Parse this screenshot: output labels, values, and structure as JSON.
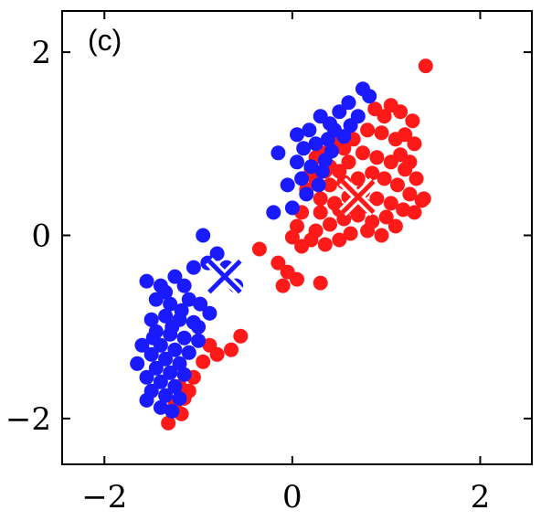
{
  "chart_data": {
    "type": "scatter",
    "panel_label": "(c)",
    "xlim": [
      -2.45,
      2.55
    ],
    "ylim": [
      -2.5,
      2.45
    ],
    "x_ticks": [
      {
        "value": -2,
        "label": "−2"
      },
      {
        "value": 0,
        "label": "0"
      },
      {
        "value": 2,
        "label": "2"
      }
    ],
    "y_ticks": [
      {
        "value": 2,
        "label": "2"
      },
      {
        "value": 0,
        "label": "0"
      },
      {
        "value": -2,
        "label": "−2"
      }
    ],
    "grid": false,
    "series": [
      {
        "color": "#ff1a1a",
        "points": [
          [
            1.42,
            1.85
          ],
          [
            1.28,
            1.25
          ],
          [
            1.15,
            1.35
          ],
          [
            1.05,
            1.42
          ],
          [
            0.98,
            1.3
          ],
          [
            0.88,
            1.38
          ],
          [
            1.2,
            1.1
          ],
          [
            1.3,
            1.0
          ],
          [
            1.1,
            1.05
          ],
          [
            0.95,
            1.12
          ],
          [
            0.8,
            1.15
          ],
          [
            0.65,
            1.05
          ],
          [
            0.55,
            0.95
          ],
          [
            0.45,
            1.02
          ],
          [
            0.35,
            0.9
          ],
          [
            0.25,
            0.85
          ],
          [
            0.4,
            0.75
          ],
          [
            0.6,
            0.8
          ],
          [
            0.75,
            0.9
          ],
          [
            0.9,
            0.85
          ],
          [
            1.05,
            0.8
          ],
          [
            1.2,
            0.72
          ],
          [
            1.32,
            0.62
          ],
          [
            1.25,
            0.45
          ],
          [
            1.12,
            0.55
          ],
          [
            0.98,
            0.62
          ],
          [
            0.85,
            0.68
          ],
          [
            0.7,
            0.62
          ],
          [
            0.55,
            0.58
          ],
          [
            0.4,
            0.55
          ],
          [
            0.25,
            0.6
          ],
          [
            0.15,
            0.5
          ],
          [
            0.3,
            0.4
          ],
          [
            0.45,
            0.35
          ],
          [
            0.6,
            0.42
          ],
          [
            0.75,
            0.48
          ],
          [
            0.9,
            0.4
          ],
          [
            1.05,
            0.35
          ],
          [
            1.18,
            0.28
          ],
          [
            1.3,
            0.25
          ],
          [
            1.38,
            0.38
          ],
          [
            1.0,
            0.2
          ],
          [
            0.85,
            0.15
          ],
          [
            0.7,
            0.22
          ],
          [
            0.55,
            0.18
          ],
          [
            0.4,
            0.12
          ],
          [
            0.25,
            0.05
          ],
          [
            0.1,
            0.25
          ],
          [
            0.05,
            0.1
          ],
          [
            0.2,
            -0.05
          ],
          [
            0.35,
            -0.1
          ],
          [
            0.5,
            -0.05
          ],
          [
            0.62,
            0.02
          ],
          [
            0.8,
            0.05
          ],
          [
            0.95,
            0.0
          ],
          [
            1.1,
            0.1
          ],
          [
            0.3,
            0.25
          ],
          [
            0.5,
            0.28
          ],
          [
            0.65,
            0.3
          ],
          [
            0.78,
            0.32
          ],
          [
            1.15,
            0.88
          ],
          [
            1.25,
            0.8
          ],
          [
            0.5,
            0.7
          ],
          [
            0.35,
            0.7
          ],
          [
            0.2,
            0.7
          ],
          [
            0.0,
            -0.02
          ],
          [
            0.1,
            -0.12
          ],
          [
            -0.15,
            -0.3
          ],
          [
            -0.05,
            -0.4
          ],
          [
            -0.1,
            -0.55
          ],
          [
            0.05,
            -0.48
          ],
          [
            -0.35,
            -0.15
          ],
          [
            0.3,
            -0.52
          ],
          [
            -0.55,
            -1.1
          ],
          [
            -0.65,
            -1.25
          ],
          [
            -0.8,
            -1.3
          ],
          [
            -0.95,
            -1.38
          ],
          [
            -1.05,
            -1.55
          ],
          [
            -1.1,
            -1.7
          ],
          [
            -1.15,
            -1.78
          ],
          [
            -1.2,
            -1.65
          ],
          [
            -1.25,
            -1.85
          ],
          [
            -1.32,
            -2.05
          ],
          [
            -1.18,
            -1.95
          ],
          [
            -0.88,
            -1.2
          ],
          [
            1.4,
            0.4
          ]
        ]
      },
      {
        "color": "#1a1aff",
        "points": [
          [
            0.75,
            1.6
          ],
          [
            0.6,
            1.45
          ],
          [
            0.82,
            1.52
          ],
          [
            0.5,
            1.35
          ],
          [
            0.4,
            1.22
          ],
          [
            0.3,
            1.3
          ],
          [
            0.45,
            1.15
          ],
          [
            0.62,
            1.2
          ],
          [
            0.7,
            1.3
          ],
          [
            0.18,
            1.15
          ],
          [
            0.05,
            1.1
          ],
          [
            0.25,
            1.0
          ],
          [
            0.38,
            1.05
          ],
          [
            0.55,
            1.08
          ],
          [
            -0.15,
            0.9
          ],
          [
            0.05,
            0.8
          ],
          [
            0.2,
            0.75
          ],
          [
            0.32,
            0.7
          ],
          [
            0.1,
            0.62
          ],
          [
            0.28,
            0.55
          ],
          [
            0.15,
            0.45
          ],
          [
            -0.05,
            0.55
          ],
          [
            0.0,
            0.3
          ],
          [
            -0.2,
            0.25
          ],
          [
            0.42,
            0.92
          ],
          [
            0.12,
            0.95
          ],
          [
            0.35,
            0.82
          ],
          [
            -0.95,
            0.0
          ],
          [
            -0.8,
            -0.2
          ],
          [
            -0.7,
            -0.35
          ],
          [
            -0.6,
            -0.55
          ],
          [
            -0.9,
            -0.3
          ],
          [
            -1.05,
            -0.35
          ],
          [
            -1.15,
            -0.55
          ],
          [
            -1.25,
            -0.45
          ],
          [
            -1.4,
            -0.55
          ],
          [
            -1.55,
            -0.5
          ],
          [
            -1.45,
            -0.7
          ],
          [
            -1.3,
            -0.75
          ],
          [
            -1.1,
            -0.7
          ],
          [
            -0.98,
            -0.75
          ],
          [
            -0.88,
            -0.85
          ],
          [
            -1.35,
            -0.88
          ],
          [
            -1.2,
            -0.92
          ],
          [
            -1.05,
            -0.95
          ],
          [
            -1.5,
            -0.92
          ],
          [
            -1.45,
            -1.05
          ],
          [
            -1.3,
            -1.08
          ],
          [
            -1.15,
            -1.12
          ],
          [
            -1.0,
            -1.15
          ],
          [
            -1.4,
            -1.2
          ],
          [
            -1.25,
            -1.25
          ],
          [
            -1.1,
            -1.28
          ],
          [
            -1.5,
            -1.3
          ],
          [
            -1.35,
            -1.35
          ],
          [
            -1.2,
            -1.4
          ],
          [
            -1.45,
            -1.45
          ],
          [
            -1.3,
            -1.5
          ],
          [
            -1.15,
            -1.52
          ],
          [
            -1.55,
            -1.55
          ],
          [
            -1.4,
            -1.6
          ],
          [
            -1.25,
            -1.65
          ],
          [
            -1.35,
            -1.75
          ],
          [
            -1.5,
            -1.7
          ],
          [
            -1.2,
            -1.78
          ],
          [
            -1.4,
            -1.88
          ],
          [
            -1.28,
            -1.92
          ],
          [
            -1.55,
            -1.8
          ],
          [
            -1.65,
            -1.4
          ],
          [
            -1.6,
            -1.2
          ],
          [
            -1.35,
            -0.62
          ],
          [
            -1.0,
            -1.0
          ],
          [
            -1.18,
            -0.82
          ],
          [
            -1.28,
            -1.0
          ],
          [
            -1.48,
            -1.12
          ]
        ]
      }
    ],
    "centroids": [
      {
        "x": 0.7,
        "y": 0.42,
        "color": "#ff1a1a"
      },
      {
        "x": -0.72,
        "y": -0.45,
        "color": "#1a1aff"
      }
    ]
  }
}
